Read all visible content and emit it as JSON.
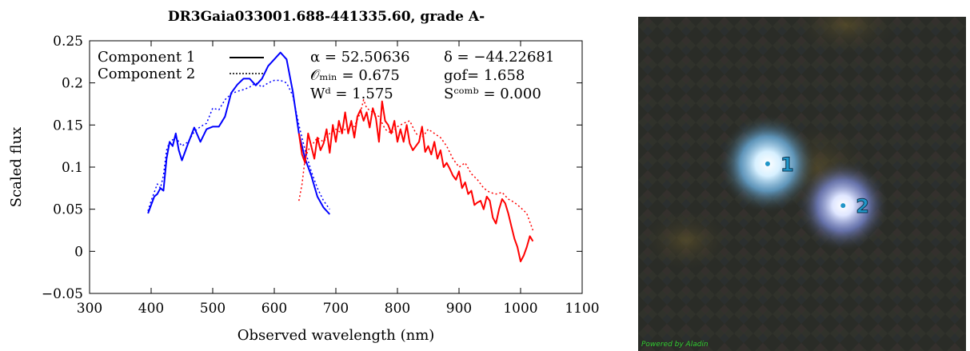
{
  "chart_data": {
    "type": "line",
    "title": "DR3Gaia033001.688-441335.60, grade A-",
    "xlabel": "Observed wavelength (nm)",
    "ylabel": "Scaled flux",
    "xlim": [
      300,
      1100
    ],
    "ylim": [
      -0.05,
      0.25
    ],
    "xticks": [
      "300",
      "400",
      "500",
      "600",
      "700",
      "800",
      "900",
      "1000",
      "1100"
    ],
    "xtick_values": [
      300,
      400,
      500,
      600,
      700,
      800,
      900,
      1000,
      1100
    ],
    "yticks": [
      "−0.05",
      "0",
      "0.05",
      "0.1",
      "0.15",
      "0.2",
      "0.25"
    ],
    "ytick_values": [
      -0.05,
      0,
      0.05,
      0.1,
      0.15,
      0.2,
      0.25
    ],
    "grid": false,
    "legend": {
      "placement": "top-left",
      "entries": [
        {
          "label": "Component 1",
          "style": "solid"
        },
        {
          "label": "Component 2",
          "style": "dotted"
        }
      ]
    },
    "annotations": {
      "alpha": "α = 52.50636",
      "delta": "δ = −44.22681",
      "omin": "𝒪ₘᵢₙ = 0.675",
      "gof": "gof= 1.658",
      "wd": "Wᵈ = 1.575",
      "scomb": "Sᶜᵒᵐᵇ = 0.000"
    },
    "series": [
      {
        "name": "Component 1",
        "band": "blue",
        "style": "solid",
        "color": "#0000ff",
        "x": [
          395,
          400,
          405,
          410,
          415,
          420,
          425,
          430,
          435,
          440,
          445,
          450,
          460,
          470,
          480,
          490,
          500,
          510,
          520,
          530,
          540,
          550,
          560,
          570,
          580,
          590,
          600,
          610,
          620,
          630,
          640,
          650,
          660,
          670,
          680,
          690
        ],
        "y": [
          0.045,
          0.055,
          0.065,
          0.068,
          0.075,
          0.072,
          0.11,
          0.13,
          0.125,
          0.14,
          0.12,
          0.108,
          0.128,
          0.147,
          0.13,
          0.145,
          0.148,
          0.148,
          0.16,
          0.188,
          0.198,
          0.205,
          0.205,
          0.197,
          0.205,
          0.22,
          0.228,
          0.236,
          0.228,
          0.19,
          0.14,
          0.11,
          0.09,
          0.065,
          0.052,
          0.044
        ]
      },
      {
        "name": "Component 1",
        "band": "red",
        "style": "solid",
        "color": "#ff0000",
        "x": [
          640,
          645,
          650,
          655,
          660,
          665,
          670,
          675,
          680,
          685,
          690,
          695,
          700,
          705,
          710,
          715,
          720,
          725,
          730,
          735,
          740,
          745,
          750,
          755,
          760,
          765,
          770,
          775,
          780,
          785,
          790,
          795,
          800,
          805,
          810,
          815,
          820,
          825,
          830,
          835,
          840,
          845,
          850,
          855,
          860,
          865,
          870,
          875,
          880,
          885,
          890,
          895,
          900,
          905,
          910,
          915,
          920,
          925,
          930,
          935,
          940,
          945,
          950,
          955,
          960,
          965,
          970,
          975,
          980,
          985,
          990,
          995,
          1000,
          1005,
          1010,
          1015,
          1020
        ],
        "y": [
          0.14,
          0.115,
          0.105,
          0.14,
          0.125,
          0.11,
          0.135,
          0.12,
          0.128,
          0.145,
          0.117,
          0.15,
          0.13,
          0.155,
          0.14,
          0.165,
          0.14,
          0.155,
          0.135,
          0.16,
          0.168,
          0.155,
          0.165,
          0.147,
          0.17,
          0.158,
          0.13,
          0.178,
          0.155,
          0.15,
          0.14,
          0.155,
          0.13,
          0.145,
          0.13,
          0.15,
          0.128,
          0.12,
          0.125,
          0.13,
          0.148,
          0.118,
          0.125,
          0.115,
          0.13,
          0.11,
          0.12,
          0.1,
          0.105,
          0.098,
          0.09,
          0.085,
          0.095,
          0.075,
          0.082,
          0.068,
          0.072,
          0.055,
          0.058,
          0.06,
          0.05,
          0.065,
          0.06,
          0.04,
          0.033,
          0.05,
          0.062,
          0.057,
          0.045,
          0.03,
          0.015,
          0.005,
          -0.012,
          -0.005,
          0.005,
          0.018,
          0.012
        ]
      },
      {
        "name": "Component 2",
        "band": "blue",
        "style": "dotted",
        "color": "#0000ff",
        "x": [
          395,
          400,
          405,
          410,
          415,
          420,
          425,
          430,
          440,
          450,
          460,
          470,
          480,
          490,
          500,
          510,
          520,
          530,
          540,
          550,
          560,
          570,
          580,
          590,
          600,
          610,
          620,
          630,
          640,
          650,
          660,
          670,
          680,
          690
        ],
        "y": [
          0.048,
          0.06,
          0.07,
          0.08,
          0.075,
          0.09,
          0.12,
          0.13,
          0.135,
          0.125,
          0.13,
          0.142,
          0.148,
          0.152,
          0.17,
          0.168,
          0.18,
          0.187,
          0.19,
          0.192,
          0.195,
          0.2,
          0.195,
          0.2,
          0.203,
          0.203,
          0.2,
          0.185,
          0.15,
          0.12,
          0.095,
          0.075,
          0.06,
          0.05
        ]
      },
      {
        "name": "Component 2",
        "band": "red",
        "style": "dotted",
        "color": "#ff0000",
        "x": [
          640,
          645,
          650,
          655,
          660,
          665,
          670,
          680,
          690,
          700,
          710,
          720,
          730,
          740,
          745,
          750,
          760,
          770,
          780,
          790,
          800,
          810,
          820,
          830,
          840,
          850,
          860,
          870,
          880,
          890,
          900,
          910,
          920,
          930,
          940,
          950,
          960,
          970,
          980,
          990,
          1000,
          1010,
          1020
        ],
        "y": [
          0.06,
          0.08,
          0.11,
          0.12,
          0.125,
          0.13,
          0.135,
          0.13,
          0.14,
          0.145,
          0.14,
          0.15,
          0.148,
          0.165,
          0.18,
          0.17,
          0.165,
          0.16,
          0.145,
          0.14,
          0.148,
          0.152,
          0.155,
          0.14,
          0.135,
          0.145,
          0.14,
          0.135,
          0.125,
          0.11,
          0.1,
          0.105,
          0.092,
          0.085,
          0.075,
          0.07,
          0.068,
          0.07,
          0.062,
          0.058,
          0.052,
          0.045,
          0.025
        ]
      }
    ]
  },
  "sky_image": {
    "markers": [
      {
        "label": "1",
        "u": 0.395,
        "v": 0.44
      },
      {
        "label": "2",
        "u": 0.625,
        "v": 0.565
      }
    ],
    "marker_color": "#2196c8",
    "credit": "Powered by Aladin"
  }
}
